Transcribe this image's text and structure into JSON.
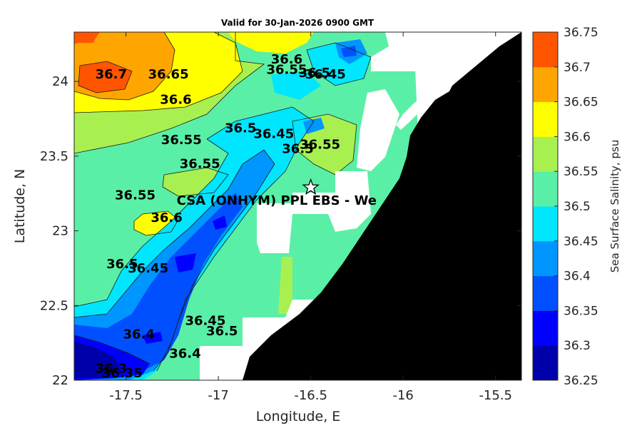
{
  "header": {
    "title": "Valid for 30-Jan-2026 0900 GMT"
  },
  "axes": {
    "xlabel": "Longitude, E",
    "ylabel": "Latitude, N",
    "xticks": [
      -17.5,
      -17,
      -16.5,
      -16,
      -15.5
    ],
    "xtick_labels": [
      "-17.5",
      "-17",
      "-16.5",
      "-16",
      "-15.5"
    ],
    "yticks": [
      24,
      23.5,
      23,
      22.5,
      22
    ],
    "ytick_labels": [
      "24",
      "23.5",
      "23",
      "22.5",
      "22"
    ],
    "xlim": [
      -17.78,
      -15.36
    ],
    "ylim": [
      22,
      24.33
    ]
  },
  "colorbar": {
    "label": "Sea Surface Salinity, psu",
    "levels": [
      36.25,
      36.3,
      36.35,
      36.4,
      36.45,
      36.5,
      36.55,
      36.6,
      36.65,
      36.7,
      36.75
    ],
    "tick_labels": [
      "36.25",
      "36.3",
      "36.35",
      "36.4",
      "36.45",
      "36.5",
      "36.55",
      "36.6",
      "36.65",
      "36.7",
      "36.75"
    ],
    "colors": [
      "#0000aa",
      "#0000ff",
      "#0050ff",
      "#0096ff",
      "#00e6ff",
      "#5aefa6",
      "#a8f050",
      "#ffff00",
      "#ffa500",
      "#ff5500"
    ]
  },
  "station": {
    "label": "CSA (ONHYM) PPL EBS  - We",
    "lon": -16.5,
    "lat": 23.29
  },
  "contour_labels": [
    {
      "text": "36.7",
      "lon": -17.58,
      "lat": 24.02
    },
    {
      "text": "36.65",
      "lon": -17.27,
      "lat": 24.02
    },
    {
      "text": "36.6",
      "lon": -17.23,
      "lat": 23.85
    },
    {
      "text": "36.6",
      "lon": -16.63,
      "lat": 24.12
    },
    {
      "text": "36.55",
      "lon": -16.63,
      "lat": 24.05
    },
    {
      "text": "36.5",
      "lon": -16.48,
      "lat": 24.03
    },
    {
      "text": "36.45",
      "lon": -16.42,
      "lat": 24.02
    },
    {
      "text": "36.5",
      "lon": -16.88,
      "lat": 23.66
    },
    {
      "text": "36.55",
      "lon": -17.2,
      "lat": 23.58
    },
    {
      "text": "36.45",
      "lon": -16.7,
      "lat": 23.62
    },
    {
      "text": "36.5",
      "lon": -16.57,
      "lat": 23.52
    },
    {
      "text": "36.55",
      "lon": -16.45,
      "lat": 23.55
    },
    {
      "text": "36.55",
      "lon": -17.1,
      "lat": 23.42
    },
    {
      "text": "36.55",
      "lon": -17.45,
      "lat": 23.21
    },
    {
      "text": "36.6",
      "lon": -17.28,
      "lat": 23.06
    },
    {
      "text": "36.5",
      "lon": -17.52,
      "lat": 22.75
    },
    {
      "text": "36.45",
      "lon": -17.38,
      "lat": 22.72
    },
    {
      "text": "36.4",
      "lon": -17.43,
      "lat": 22.28
    },
    {
      "text": "36.4",
      "lon": -17.18,
      "lat": 22.15
    },
    {
      "text": "36.45",
      "lon": -17.07,
      "lat": 22.37
    },
    {
      "text": "36.5",
      "lon": -16.98,
      "lat": 22.3
    },
    {
      "text": "36.3",
      "lon": -17.58,
      "lat": 22.05
    },
    {
      "text": "36.35",
      "lon": -17.52,
      "lat": 22.02
    }
  ]
}
